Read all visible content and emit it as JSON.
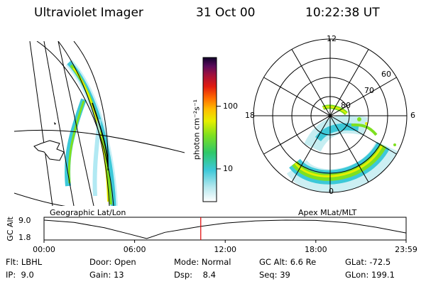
{
  "header": {
    "instrument": "Ultraviolet Imager",
    "date": "31 Oct 00",
    "time": "10:22:38 UT"
  },
  "panels": {
    "left_label": "Geographic Lat/Lon",
    "right_label": "Apex MLat/MLT"
  },
  "colorbar": {
    "unit_label": "photon cm⁻²s⁻¹",
    "ticks": [
      "100",
      "10"
    ],
    "scale": "log",
    "range": [
      3,
      600
    ]
  },
  "polar": {
    "mlt_labels": [
      "12",
      "18",
      "6",
      "0"
    ],
    "mlat_labels": [
      "60",
      "70",
      "80"
    ]
  },
  "chart_data": {
    "type": "line",
    "title": "",
    "xlabel": "",
    "ylabel": "GC Alt",
    "x_ticks": [
      "00:00",
      "06:00",
      "12:00",
      "18:00",
      "23:59"
    ],
    "y_ticks": [
      "9.0",
      "1.8"
    ],
    "ylim": [
      1.8,
      9.0
    ],
    "x_hours": [
      0,
      2,
      4,
      5.5,
      6.8,
      8,
      10.4,
      12,
      14,
      16,
      18,
      20,
      22,
      23.98
    ],
    "y_re": [
      9.0,
      8.1,
      6.0,
      3.8,
      1.8,
      4.2,
      6.6,
      7.8,
      8.7,
      9.0,
      8.9,
      8.0,
      6.2,
      4.0
    ],
    "marker_hour": 10.38,
    "marker_color": "#e00000"
  },
  "footer": {
    "filter": "Flt: LBHL",
    "door": "Door: Open",
    "mode": "Mode: Normal",
    "gc_alt": "GC Alt: 6.6 Re",
    "glat": "GLat: -72.5",
    "ip": "IP:  9.0",
    "gain": "Gain: 13",
    "dsp": "Dsp:    8.4",
    "seq": "Seq: 39",
    "glon": "GLon: 199.1"
  }
}
